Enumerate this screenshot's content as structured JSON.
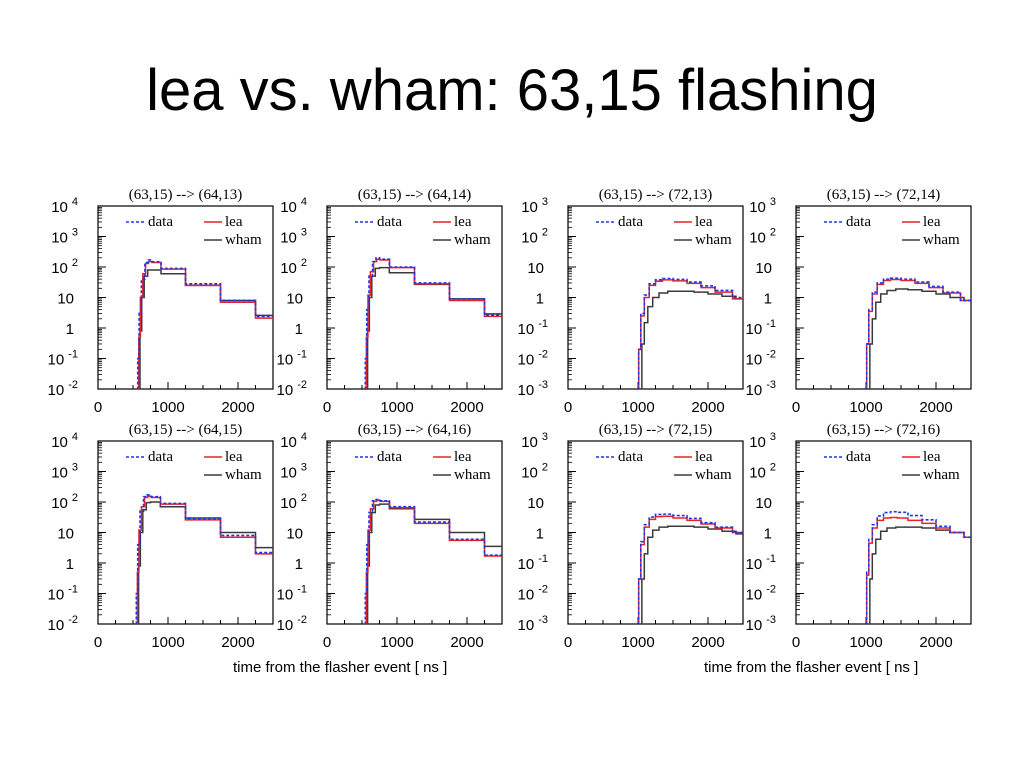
{
  "slide": {
    "title": "lea vs. wham: 63,15 flashing"
  },
  "xlabel_left": "time from the flasher event [ ns ]",
  "xlabel_right": "time from the flasher event [ ns ]",
  "colors": {
    "data": "#1f35e8",
    "lea": "#e8222b",
    "wham": "#3a3a3a"
  },
  "chart_data": [
    {
      "type": "line",
      "title": "(63,15) --> (64,13)",
      "xlim": [
        0,
        2500
      ],
      "x_ticks": [
        0,
        1000,
        2000
      ],
      "log_y": true,
      "y_decades": [
        "10^-2",
        "10^-1",
        "1",
        "10",
        "10^2",
        "10^3",
        "10^4"
      ],
      "ylim": [
        0.01,
        10000
      ],
      "legend": [
        "data",
        "lea",
        "wham"
      ],
      "legend_placement": "top-right",
      "series": [
        {
          "name": "data",
          "style": "dashed",
          "x": [
            560,
            575,
            600,
            640,
            700,
            740,
            800,
            1000,
            1500,
            2000,
            2500
          ],
          "y": [
            0.01,
            0.1,
            3,
            40,
            140,
            170,
            150,
            90,
            28,
            8,
            2.4
          ]
        },
        {
          "name": "lea",
          "style": "solid",
          "x": [
            575,
            590,
            620,
            660,
            700,
            740,
            800,
            1000,
            1500,
            2000,
            2500
          ],
          "y": [
            0.01,
            0.5,
            10,
            60,
            130,
            150,
            140,
            85,
            25,
            7,
            2.1
          ]
        },
        {
          "name": "wham",
          "style": "solid",
          "x": [
            590,
            610,
            640,
            680,
            740,
            800,
            1000,
            1500,
            2000,
            2500
          ],
          "y": [
            0.01,
            0.8,
            10,
            50,
            80,
            80,
            60,
            25,
            8,
            2.6
          ]
        }
      ]
    },
    {
      "type": "line",
      "title": "(63,15) --> (64,14)",
      "xlim": [
        0,
        2500
      ],
      "x_ticks": [
        0,
        1000,
        2000
      ],
      "log_y": true,
      "y_decades": [
        "10^-2",
        "10^-1",
        "1",
        "10",
        "10^2",
        "10^3",
        "10^4"
      ],
      "ylim": [
        0.01,
        10000
      ],
      "legend": [
        "data",
        "lea",
        "wham"
      ],
      "legend_placement": "top-right",
      "series": [
        {
          "name": "data",
          "style": "dashed",
          "x": [
            540,
            555,
            580,
            620,
            680,
            720,
            780,
            1000,
            1500,
            2000,
            2500
          ],
          "y": [
            0.01,
            0.1,
            4,
            50,
            150,
            200,
            180,
            100,
            30,
            9,
            2.6
          ]
        },
        {
          "name": "lea",
          "style": "solid",
          "x": [
            555,
            570,
            600,
            640,
            690,
            730,
            790,
            1000,
            1500,
            2000,
            2500
          ],
          "y": [
            0.01,
            0.5,
            12,
            70,
            150,
            180,
            170,
            95,
            28,
            8,
            2.4
          ]
        },
        {
          "name": "wham",
          "style": "solid",
          "x": [
            570,
            590,
            620,
            660,
            720,
            780,
            1000,
            1500,
            2000,
            2500
          ],
          "y": [
            0.01,
            0.8,
            10,
            50,
            90,
            95,
            65,
            27,
            9,
            2.9
          ]
        }
      ]
    },
    {
      "type": "line",
      "title": "(63,15) --> (72,13)",
      "xlim": [
        0,
        2500
      ],
      "x_ticks": [
        0,
        1000,
        2000
      ],
      "log_y": true,
      "y_decades": [
        "10^-3",
        "10^-2",
        "10^-1",
        "1",
        "10",
        "10^2",
        "10^3"
      ],
      "ylim": [
        0.001,
        1000
      ],
      "legend": [
        "data",
        "lea",
        "wham"
      ],
      "legend_placement": "top-right",
      "series": [
        {
          "name": "data",
          "style": "dashed",
          "x": [
            1000,
            1020,
            1060,
            1120,
            1200,
            1300,
            1400,
            1600,
            1800,
            2000,
            2200,
            2500
          ],
          "y": [
            0.001,
            0.02,
            0.3,
            1.2,
            2.8,
            3.8,
            4.2,
            3.9,
            3.2,
            2.4,
            1.7,
            1.0
          ]
        },
        {
          "name": "lea",
          "style": "solid",
          "x": [
            1000,
            1020,
            1060,
            1120,
            1200,
            1300,
            1400,
            1600,
            1800,
            2000,
            2200,
            2500
          ],
          "y": [
            0.001,
            0.02,
            0.25,
            1.0,
            2.5,
            3.4,
            3.8,
            3.5,
            2.9,
            2.1,
            1.5,
            0.9
          ]
        },
        {
          "name": "wham",
          "style": "solid",
          "x": [
            1040,
            1070,
            1110,
            1170,
            1250,
            1350,
            1500,
            1700,
            1900,
            2100,
            2300,
            2500
          ],
          "y": [
            0.001,
            0.03,
            0.15,
            0.5,
            1.0,
            1.4,
            1.6,
            1.6,
            1.5,
            1.3,
            1.1,
            0.9
          ]
        }
      ]
    },
    {
      "type": "line",
      "title": "(63,15) --> (72,14)",
      "xlim": [
        0,
        2500
      ],
      "x_ticks": [
        0,
        1000,
        2000
      ],
      "log_y": true,
      "y_decades": [
        "10^-3",
        "10^-2",
        "10^-1",
        "1",
        "10",
        "10^2",
        "10^3"
      ],
      "ylim": [
        0.001,
        1000
      ],
      "legend": [
        "data",
        "lea",
        "wham"
      ],
      "legend_placement": "top-right",
      "series": [
        {
          "name": "data",
          "style": "dashed",
          "x": [
            1000,
            1020,
            1060,
            1120,
            1200,
            1300,
            1400,
            1600,
            1800,
            2000,
            2200,
            2500
          ],
          "y": [
            0.001,
            0.03,
            0.4,
            1.5,
            3.0,
            4.0,
            4.3,
            4.0,
            3.2,
            2.3,
            1.5,
            0.8
          ]
        },
        {
          "name": "lea",
          "style": "solid",
          "x": [
            1000,
            1020,
            1060,
            1120,
            1200,
            1300,
            1400,
            1600,
            1800,
            2000,
            2200,
            2500
          ],
          "y": [
            0.001,
            0.03,
            0.35,
            1.3,
            2.7,
            3.6,
            3.9,
            3.6,
            2.9,
            2.1,
            1.4,
            0.8
          ]
        },
        {
          "name": "wham",
          "style": "solid",
          "x": [
            1040,
            1070,
            1110,
            1170,
            1250,
            1350,
            1500,
            1700,
            1900,
            2100,
            2300,
            2500
          ],
          "y": [
            0.001,
            0.03,
            0.2,
            0.7,
            1.3,
            1.7,
            1.9,
            1.8,
            1.6,
            1.3,
            1.0,
            0.8
          ]
        }
      ]
    },
    {
      "type": "line",
      "title": "(63,15) --> (64,15)",
      "xlim": [
        0,
        2500
      ],
      "x_ticks": [
        0,
        1000,
        2000
      ],
      "log_y": true,
      "y_decades": [
        "10^-2",
        "10^-1",
        "1",
        "10",
        "10^2",
        "10^3",
        "10^4"
      ],
      "ylim": [
        0.01,
        10000
      ],
      "legend": [
        "data",
        "lea",
        "wham"
      ],
      "legend_placement": "top-right",
      "series": [
        {
          "name": "data",
          "style": "dashed",
          "x": [
            540,
            555,
            580,
            620,
            680,
            720,
            780,
            1000,
            1500,
            2000,
            2500
          ],
          "y": [
            0.01,
            0.1,
            4,
            50,
            150,
            170,
            150,
            90,
            28,
            8,
            2.2
          ]
        },
        {
          "name": "lea",
          "style": "solid",
          "x": [
            555,
            570,
            600,
            640,
            690,
            730,
            790,
            1000,
            1500,
            2000,
            2500
          ],
          "y": [
            0.01,
            0.5,
            12,
            70,
            140,
            155,
            140,
            85,
            26,
            7,
            2.0
          ]
        },
        {
          "name": "wham",
          "style": "solid",
          "x": [
            570,
            590,
            620,
            660,
            720,
            780,
            1000,
            1500,
            2000,
            2500
          ],
          "y": [
            0.01,
            0.8,
            10,
            55,
            95,
            100,
            70,
            30,
            10,
            3.2
          ]
        }
      ]
    },
    {
      "type": "line",
      "title": "(63,15) --> (64,16)",
      "xlim": [
        0,
        2500
      ],
      "x_ticks": [
        0,
        1000,
        2000
      ],
      "log_y": true,
      "y_decades": [
        "10^-2",
        "10^-1",
        "1",
        "10",
        "10^2",
        "10^3",
        "10^4"
      ],
      "ylim": [
        0.01,
        10000
      ],
      "legend": [
        "data",
        "lea",
        "wham"
      ],
      "legend_placement": "top-right",
      "series": [
        {
          "name": "data",
          "style": "dashed",
          "x": [
            540,
            555,
            580,
            620,
            680,
            720,
            780,
            1000,
            1500,
            2000,
            2500
          ],
          "y": [
            0.01,
            0.1,
            4,
            45,
            110,
            120,
            110,
            70,
            22,
            6,
            1.8
          ]
        },
        {
          "name": "lea",
          "style": "solid",
          "x": [
            555,
            570,
            600,
            640,
            690,
            730,
            790,
            1000,
            1500,
            2000,
            2500
          ],
          "y": [
            0.01,
            0.5,
            12,
            60,
            105,
            115,
            105,
            65,
            20,
            5.5,
            1.7
          ]
        },
        {
          "name": "wham",
          "style": "solid",
          "x": [
            570,
            590,
            620,
            660,
            720,
            780,
            1000,
            1500,
            2000,
            2500
          ],
          "y": [
            0.01,
            0.8,
            10,
            45,
            80,
            85,
            60,
            27,
            10,
            3.5
          ]
        }
      ]
    },
    {
      "type": "line",
      "title": "(63,15) --> (72,15)",
      "xlim": [
        0,
        2500
      ],
      "x_ticks": [
        0,
        1000,
        2000
      ],
      "log_y": true,
      "y_decades": [
        "10^-3",
        "10^-2",
        "10^-1",
        "1",
        "10",
        "10^2",
        "10^3"
      ],
      "ylim": [
        0.001,
        1000
      ],
      "legend": [
        "data",
        "lea",
        "wham"
      ],
      "legend_placement": "top-right",
      "series": [
        {
          "name": "data",
          "style": "dashed",
          "x": [
            1000,
            1020,
            1060,
            1120,
            1200,
            1300,
            1400,
            1600,
            1800,
            2000,
            2200,
            2500
          ],
          "y": [
            0.001,
            0.03,
            0.5,
            1.8,
            3.2,
            3.9,
            4.0,
            3.6,
            2.9,
            2.1,
            1.5,
            1.0
          ]
        },
        {
          "name": "lea",
          "style": "solid",
          "x": [
            1000,
            1020,
            1060,
            1120,
            1200,
            1300,
            1400,
            1600,
            1800,
            2000,
            2200,
            2500
          ],
          "y": [
            0.001,
            0.03,
            0.4,
            1.5,
            2.7,
            3.3,
            3.4,
            3.0,
            2.5,
            1.9,
            1.4,
            1.0
          ]
        },
        {
          "name": "wham",
          "style": "solid",
          "x": [
            1040,
            1070,
            1110,
            1170,
            1250,
            1350,
            1500,
            1700,
            1900,
            2100,
            2300,
            2500
          ],
          "y": [
            0.001,
            0.03,
            0.2,
            0.7,
            1.2,
            1.5,
            1.6,
            1.6,
            1.5,
            1.3,
            1.1,
            0.9
          ]
        }
      ]
    },
    {
      "type": "line",
      "title": "(63,15) --> (72,16)",
      "xlim": [
        0,
        2500
      ],
      "x_ticks": [
        0,
        1000,
        2000
      ],
      "log_y": true,
      "y_decades": [
        "10^-3",
        "10^-2",
        "10^-1",
        "1",
        "10",
        "10^2",
        "10^3"
      ],
      "ylim": [
        0.001,
        1000
      ],
      "legend": [
        "data",
        "lea",
        "wham"
      ],
      "legend_placement": "top-right",
      "series": [
        {
          "name": "data",
          "style": "dashed",
          "x": [
            1000,
            1020,
            1060,
            1120,
            1200,
            1300,
            1400,
            1500,
            1700,
            1900,
            2100,
            2300,
            2500
          ],
          "y": [
            0.001,
            0.05,
            0.6,
            1.8,
            3.5,
            4.5,
            4.8,
            4.6,
            3.6,
            2.6,
            1.6,
            1.0,
            0.7
          ]
        },
        {
          "name": "lea",
          "style": "solid",
          "x": [
            1000,
            1020,
            1060,
            1120,
            1200,
            1300,
            1400,
            1500,
            1700,
            1900,
            2100,
            2300,
            2500
          ],
          "y": [
            0.001,
            0.04,
            0.45,
            1.4,
            2.5,
            3.0,
            3.1,
            3.0,
            2.5,
            2.0,
            1.4,
            1.0,
            0.7
          ]
        },
        {
          "name": "wham",
          "style": "solid",
          "x": [
            1040,
            1070,
            1110,
            1170,
            1250,
            1350,
            1500,
            1700,
            1900,
            2100,
            2300,
            2500
          ],
          "y": [
            0.001,
            0.03,
            0.2,
            0.6,
            1.1,
            1.4,
            1.5,
            1.5,
            1.4,
            1.2,
            1.0,
            0.7
          ]
        }
      ]
    }
  ]
}
